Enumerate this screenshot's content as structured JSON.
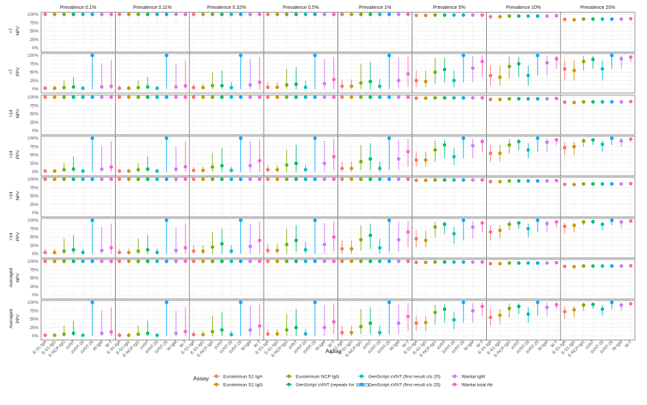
{
  "chart_data": {
    "type": "scatter",
    "xlabel": "Assay",
    "legend_title": "Assay",
    "legend_position": "bottom",
    "grid": true,
    "ylim": [
      0,
      100
    ],
    "yticks": [
      "0%",
      "25%",
      "50%",
      "75%",
      "100%"
    ],
    "prevalences": [
      "Prevalence 0.1%",
      "Prevalence 0.11%",
      "Prevalence 0.32%",
      "Prevalence 0.5%",
      "Prevalence 1%",
      "Prevalence 5%",
      "Prevalence 10%",
      "Prevalence 20%"
    ],
    "rows": [
      {
        "day": "<7",
        "metric": "NPV"
      },
      {
        "day": "<7",
        "metric": "PPV"
      },
      {
        "day": ">14",
        "metric": "NPV"
      },
      {
        "day": ">14",
        "metric": "PPV"
      },
      {
        "day": ">14",
        "metric": "NPV"
      },
      {
        "day": ">14",
        "metric": "PPV"
      },
      {
        "day": "Averaged",
        "metric": "NPV"
      },
      {
        "day": "Averaged",
        "metric": "PPV"
      }
    ],
    "categories": [
      "E-S1-IgA",
      "E-S1-IgG",
      "E-NCP-IgG",
      "sVNT",
      "sVNT-20",
      "sVNT-25",
      "W-IgM",
      "W-T"
    ],
    "series_names": [
      "Euroimmun S1 IgA",
      "Euroimmun S1 IgG",
      "Euroimmun NCP IgG",
      "GenScript sVNT (repeats for 18-22)",
      "GenScript sVNT (first result c/o 20)",
      "GenScript sVNT (first result c/o 25)",
      "Wantai IgM",
      "Wantai total Ab"
    ],
    "colors": [
      "#F8766D",
      "#CD9600",
      "#7CAE00",
      "#00BE67",
      "#00BFC4",
      "#00A9FF",
      "#C77CFF",
      "#FF61CC"
    ],
    "npv_values": [
      [
        100,
        100,
        100,
        100,
        100,
        100,
        100,
        100
      ],
      [
        100,
        100,
        100,
        100,
        100,
        100,
        100,
        100
      ],
      [
        100,
        100,
        100,
        100,
        100,
        100,
        100,
        100
      ],
      [
        100,
        100,
        100,
        100,
        100,
        100,
        100,
        100
      ],
      [
        100,
        100,
        100,
        100,
        100,
        100,
        100,
        100
      ],
      [
        97,
        97,
        98,
        98,
        98,
        98,
        98,
        98
      ],
      [
        93,
        93,
        95,
        95,
        95,
        95,
        95,
        96
      ],
      [
        85,
        84,
        86,
        86,
        86,
        86,
        86,
        87
      ]
    ],
    "ppv_points": [
      [
        {
          "v": [
            2,
            2,
            4,
            6,
            2,
            100,
            6,
            8
          ],
          "lo": [
            0,
            0,
            0,
            0,
            0,
            0,
            0,
            0
          ],
          "hi": [
            10,
            10,
            25,
            35,
            8,
            100,
            75,
            85
          ]
        },
        {
          "v": [
            2,
            2,
            4,
            6,
            2,
            100,
            6,
            9
          ],
          "lo": [
            0,
            0,
            0,
            0,
            0,
            0,
            0,
            0
          ],
          "hi": [
            10,
            10,
            25,
            35,
            8,
            100,
            75,
            85
          ]
        },
        {
          "v": [
            4,
            4,
            10,
            10,
            4,
            100,
            12,
            20
          ],
          "lo": [
            0,
            0,
            0,
            0,
            0,
            0,
            0,
            0
          ],
          "hi": [
            15,
            15,
            50,
            55,
            20,
            100,
            90,
            95
          ]
        },
        {
          "v": [
            5,
            5,
            12,
            14,
            5,
            100,
            16,
            28
          ],
          "lo": [
            0,
            0,
            0,
            0,
            0,
            0,
            0,
            0
          ],
          "hi": [
            20,
            20,
            60,
            65,
            25,
            100,
            90,
            95
          ]
        },
        {
          "v": [
            8,
            8,
            18,
            22,
            8,
            100,
            25,
            45
          ],
          "lo": [
            0,
            0,
            0,
            0,
            0,
            0,
            2,
            5
          ],
          "hi": [
            28,
            28,
            75,
            80,
            30,
            100,
            95,
            97
          ]
        },
        {
          "v": [
            25,
            22,
            50,
            58,
            25,
            100,
            62,
            82
          ],
          "lo": [
            5,
            5,
            15,
            20,
            5,
            20,
            20,
            35
          ],
          "hi": [
            55,
            55,
            92,
            93,
            55,
            100,
            98,
            99
          ]
        },
        {
          "v": [
            40,
            35,
            67,
            75,
            40,
            100,
            78,
            90
          ],
          "lo": [
            10,
            10,
            30,
            35,
            10,
            40,
            40,
            60
          ],
          "hi": [
            70,
            70,
            96,
            96,
            70,
            100,
            99,
            99
          ]
        },
        {
          "v": [
            60,
            55,
            82,
            88,
            60,
            100,
            90,
            95
          ],
          "lo": [
            25,
            25,
            55,
            60,
            25,
            60,
            60,
            80
          ],
          "hi": [
            85,
            85,
            98,
            98,
            85,
            100,
            100,
            100
          ]
        }
      ],
      [
        {
          "v": [
            2,
            2,
            6,
            8,
            2,
            100,
            8,
            14
          ],
          "lo": [
            0,
            0,
            0,
            0,
            0,
            0,
            0,
            0
          ],
          "hi": [
            8,
            8,
            25,
            45,
            8,
            100,
            75,
            90
          ]
        },
        {
          "v": [
            2,
            2,
            6,
            8,
            2,
            100,
            8,
            15
          ],
          "lo": [
            0,
            0,
            0,
            0,
            0,
            0,
            0,
            0
          ],
          "hi": [
            8,
            8,
            25,
            45,
            8,
            100,
            75,
            90
          ]
        },
        {
          "v": [
            4,
            4,
            14,
            18,
            4,
            100,
            18,
            33
          ],
          "lo": [
            0,
            0,
            0,
            0,
            0,
            0,
            0,
            0
          ],
          "hi": [
            15,
            15,
            55,
            70,
            15,
            100,
            90,
            95
          ]
        },
        {
          "v": [
            6,
            6,
            20,
            25,
            6,
            100,
            25,
            45
          ],
          "lo": [
            0,
            0,
            0,
            0,
            0,
            0,
            0,
            5
          ],
          "hi": [
            20,
            20,
            65,
            80,
            20,
            100,
            92,
            97
          ]
        },
        {
          "v": [
            10,
            10,
            30,
            38,
            10,
            100,
            38,
            60
          ],
          "lo": [
            0,
            0,
            5,
            5,
            0,
            5,
            5,
            15
          ],
          "hi": [
            30,
            30,
            80,
            85,
            30,
            100,
            95,
            98
          ]
        },
        {
          "v": [
            35,
            35,
            65,
            80,
            45,
            100,
            78,
            90
          ],
          "lo": [
            15,
            15,
            30,
            40,
            20,
            40,
            40,
            60
          ],
          "hi": [
            60,
            60,
            93,
            95,
            70,
            100,
            98,
            99
          ]
        },
        {
          "v": [
            55,
            55,
            80,
            90,
            65,
            100,
            88,
            95
          ],
          "lo": [
            30,
            30,
            55,
            65,
            40,
            60,
            60,
            80
          ],
          "hi": [
            80,
            80,
            97,
            97,
            85,
            100,
            99,
            100
          ]
        },
        {
          "v": [
            72,
            75,
            92,
            95,
            82,
            100,
            92,
            97
          ],
          "lo": [
            50,
            50,
            75,
            80,
            60,
            80,
            75,
            90
          ],
          "hi": [
            88,
            88,
            99,
            99,
            92,
            100,
            100,
            100
          ]
        }
      ],
      [
        {
          "v": [
            4,
            4,
            8,
            12,
            4,
            100,
            10,
            18
          ],
          "lo": [
            0,
            0,
            0,
            0,
            0,
            0,
            0,
            0
          ],
          "hi": [
            15,
            15,
            45,
            55,
            15,
            100,
            80,
            90
          ]
        },
        {
          "v": [
            4,
            4,
            8,
            12,
            4,
            100,
            10,
            18
          ],
          "lo": [
            0,
            0,
            0,
            0,
            0,
            0,
            0,
            0
          ],
          "hi": [
            15,
            15,
            45,
            55,
            15,
            100,
            80,
            90
          ]
        },
        {
          "v": [
            8,
            8,
            20,
            30,
            8,
            100,
            22,
            40
          ],
          "lo": [
            0,
            0,
            0,
            0,
            0,
            0,
            0,
            0
          ],
          "hi": [
            25,
            25,
            65,
            75,
            25,
            100,
            90,
            95
          ]
        },
        {
          "v": [
            10,
            10,
            28,
            40,
            12,
            100,
            28,
            50
          ],
          "lo": [
            0,
            0,
            0,
            5,
            0,
            0,
            0,
            5
          ],
          "hi": [
            30,
            30,
            75,
            85,
            35,
            100,
            92,
            97
          ]
        },
        {
          "v": [
            15,
            15,
            42,
            55,
            18,
            100,
            42,
            65
          ],
          "lo": [
            0,
            0,
            10,
            15,
            0,
            5,
            5,
            20
          ],
          "hi": [
            40,
            40,
            85,
            90,
            45,
            100,
            95,
            98
          ]
        },
        {
          "v": [
            45,
            40,
            80,
            88,
            60,
            100,
            80,
            92
          ],
          "lo": [
            20,
            20,
            50,
            60,
            30,
            40,
            45,
            65
          ],
          "hi": [
            70,
            70,
            95,
            96,
            80,
            100,
            98,
            99
          ]
        },
        {
          "v": [
            65,
            70,
            88,
            92,
            75,
            100,
            90,
            95
          ],
          "lo": [
            40,
            45,
            70,
            75,
            50,
            65,
            65,
            80
          ],
          "hi": [
            85,
            85,
            98,
            98,
            90,
            100,
            99,
            100
          ]
        },
        {
          "v": [
            82,
            85,
            95,
            96,
            88,
            100,
            95,
            98
          ],
          "lo": [
            60,
            65,
            85,
            88,
            70,
            85,
            80,
            92
          ],
          "hi": [
            92,
            92,
            99,
            99,
            95,
            100,
            100,
            100
          ]
        }
      ],
      [
        {
          "v": [
            2,
            2,
            5,
            8,
            2,
            100,
            8,
            12
          ],
          "lo": [
            0,
            0,
            0,
            0,
            0,
            0,
            0,
            0
          ],
          "hi": [
            8,
            8,
            30,
            45,
            8,
            100,
            75,
            85
          ]
        },
        {
          "v": [
            2,
            2,
            5,
            8,
            2,
            100,
            8,
            13
          ],
          "lo": [
            0,
            0,
            0,
            0,
            0,
            0,
            0,
            0
          ],
          "hi": [
            8,
            8,
            30,
            45,
            8,
            100,
            75,
            85
          ]
        },
        {
          "v": [
            4,
            4,
            13,
            18,
            4,
            100,
            18,
            30
          ],
          "lo": [
            0,
            0,
            0,
            0,
            0,
            0,
            0,
            0
          ],
          "hi": [
            15,
            15,
            60,
            70,
            15,
            100,
            90,
            95
          ]
        },
        {
          "v": [
            6,
            6,
            18,
            25,
            6,
            100,
            25,
            42
          ],
          "lo": [
            0,
            0,
            0,
            0,
            0,
            0,
            0,
            5
          ],
          "hi": [
            20,
            20,
            65,
            80,
            20,
            100,
            92,
            97
          ]
        },
        {
          "v": [
            10,
            10,
            28,
            38,
            10,
            100,
            38,
            58
          ],
          "lo": [
            0,
            0,
            5,
            5,
            0,
            5,
            5,
            15
          ],
          "hi": [
            30,
            30,
            80,
            85,
            30,
            100,
            95,
            98
          ]
        },
        {
          "v": [
            38,
            40,
            70,
            80,
            48,
            100,
            75,
            88
          ],
          "lo": [
            15,
            15,
            35,
            40,
            20,
            40,
            40,
            60
          ],
          "hi": [
            60,
            60,
            93,
            95,
            70,
            100,
            98,
            99
          ]
        },
        {
          "v": [
            55,
            62,
            82,
            88,
            65,
            100,
            85,
            93
          ],
          "lo": [
            30,
            35,
            55,
            65,
            40,
            60,
            60,
            80
          ],
          "hi": [
            80,
            80,
            97,
            97,
            85,
            100,
            99,
            100
          ]
        },
        {
          "v": [
            72,
            78,
            92,
            94,
            80,
            100,
            92,
            96
          ],
          "lo": [
            50,
            55,
            75,
            80,
            60,
            80,
            75,
            90
          ],
          "hi": [
            88,
            88,
            99,
            99,
            92,
            100,
            100,
            100
          ]
        }
      ]
    ]
  }
}
